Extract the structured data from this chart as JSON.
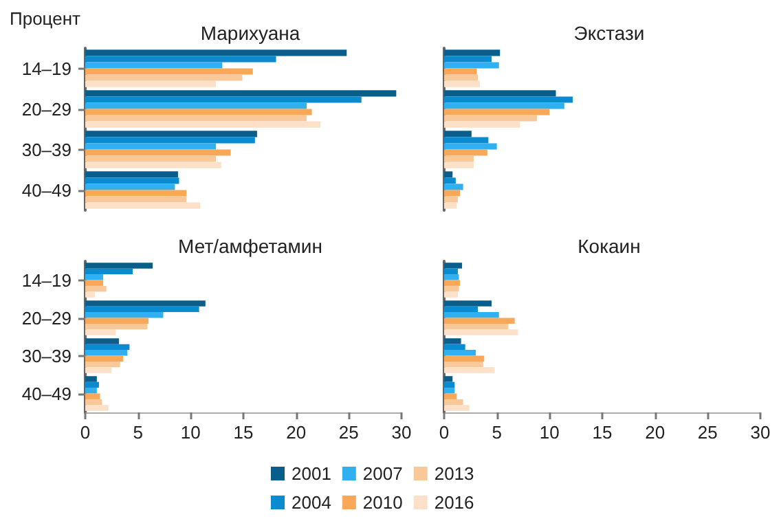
{
  "chart_data": [
    {
      "type": "bar",
      "orientation": "horizontal",
      "title": "Марихуана",
      "annotations": [
        "Процент"
      ],
      "categories": [
        "14–19",
        "20–29",
        "30–39",
        "40–49"
      ],
      "xlim": [
        0,
        30
      ],
      "xticks": [
        0,
        5,
        10,
        15,
        20,
        25,
        30
      ],
      "tick_labels": "y",
      "grid": false,
      "legend": false,
      "series": [
        {
          "color": "#0a5e8c",
          "values": [
            24.8,
            29.5,
            16.3,
            8.8
          ]
        },
        {
          "color": "#0a8bd0",
          "values": [
            18.1,
            26.2,
            16.1,
            8.9
          ]
        },
        {
          "color": "#30b0f0",
          "values": [
            13.0,
            21.0,
            12.4,
            8.5
          ]
        },
        {
          "color": "#f8a858",
          "values": [
            15.9,
            21.5,
            13.8,
            9.6
          ]
        },
        {
          "color": "#f8c898",
          "values": [
            14.9,
            21.0,
            12.4,
            9.6
          ]
        },
        {
          "color": "#fce0c8",
          "values": [
            12.4,
            22.3,
            12.9,
            10.9
          ]
        }
      ]
    },
    {
      "type": "bar",
      "orientation": "horizontal",
      "title": "Экстази",
      "categories": [
        null,
        null,
        null,
        null
      ],
      "xlim": [
        0,
        30
      ],
      "xticks": [
        0,
        5,
        10,
        15,
        20,
        25,
        30
      ],
      "tick_labels": false,
      "grid": false,
      "legend": false,
      "series": [
        {
          "color": "#0a5e8c",
          "values": [
            5.3,
            10.6,
            2.6,
            0.8
          ]
        },
        {
          "color": "#0a8bd0",
          "values": [
            4.5,
            12.2,
            4.2,
            1.1
          ]
        },
        {
          "color": "#30b0f0",
          "values": [
            5.2,
            11.4,
            5.0,
            1.8
          ]
        },
        {
          "color": "#f8a858",
          "values": [
            3.1,
            10.0,
            4.1,
            1.5
          ]
        },
        {
          "color": "#f8c898",
          "values": [
            3.2,
            8.8,
            2.8,
            1.3
          ]
        },
        {
          "color": "#fce0c8",
          "values": [
            3.4,
            7.2,
            2.8,
            1.2
          ]
        }
      ]
    },
    {
      "type": "bar",
      "orientation": "horizontal",
      "title": "Мет/амфетамин",
      "categories": [
        "14–19",
        "20–29",
        "30–39",
        "40–49"
      ],
      "xlim": [
        0,
        30
      ],
      "xticks": [
        0,
        5,
        10,
        15,
        20,
        25,
        30
      ],
      "grid": false,
      "legend": "bottom",
      "series": [
        {
          "name": "2001",
          "color": "#0a5e8c",
          "values": [
            6.4,
            11.4,
            3.2,
            1.1
          ]
        },
        {
          "name": "2004",
          "color": "#0a8bd0",
          "values": [
            4.5,
            10.8,
            4.2,
            1.3
          ]
        },
        {
          "name": "2007",
          "color": "#30b0f0",
          "values": [
            1.7,
            7.4,
            4.0,
            1.1
          ]
        },
        {
          "name": "2010",
          "color": "#f8a858",
          "values": [
            1.7,
            6.0,
            3.6,
            1.4
          ]
        },
        {
          "name": "2013",
          "color": "#f8c898",
          "values": [
            2.0,
            5.9,
            3.3,
            1.6
          ]
        },
        {
          "name": "2016",
          "color": "#fce0c8",
          "values": [
            0.9,
            2.9,
            2.5,
            2.2
          ]
        }
      ]
    },
    {
      "type": "bar",
      "orientation": "horizontal",
      "title": "Кокаин",
      "categories": [
        null,
        null,
        null,
        null
      ],
      "xlim": [
        0,
        30
      ],
      "xticks": [
        0,
        5,
        10,
        15,
        20,
        25,
        30
      ],
      "tick_labels": "x",
      "grid": false,
      "legend": false,
      "series": [
        {
          "color": "#0a5e8c",
          "values": [
            1.7,
            4.5,
            1.6,
            0.8
          ]
        },
        {
          "color": "#0a8bd0",
          "values": [
            1.3,
            3.2,
            2.0,
            1.0
          ]
        },
        {
          "color": "#30b0f0",
          "values": [
            1.4,
            5.2,
            3.0,
            1.0
          ]
        },
        {
          "color": "#f8a858",
          "values": [
            1.5,
            6.7,
            3.8,
            1.2
          ]
        },
        {
          "color": "#f8c898",
          "values": [
            1.4,
            6.1,
            3.7,
            1.8
          ]
        },
        {
          "color": "#fce0c8",
          "values": [
            1.3,
            7.0,
            4.8,
            2.4
          ]
        }
      ]
    }
  ]
}
